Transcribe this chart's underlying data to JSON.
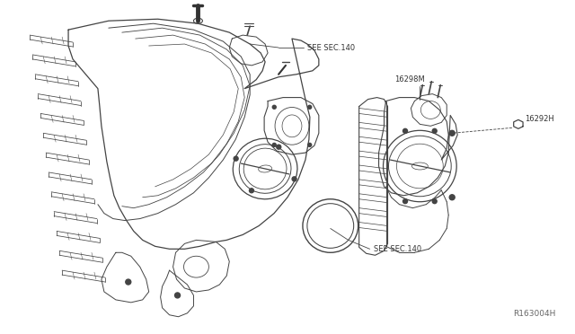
{
  "background_color": "#ffffff",
  "text_color": "#333333",
  "line_color": "#444444",
  "labels": {
    "see_sec_140_top": "SEE SEC.140",
    "see_sec_140_bottom": "SEE SEC.140",
    "part_16298M": "16298M",
    "part_16292H": "16292H",
    "diagram_code": "R163004H"
  },
  "font_size_labels": 6.0,
  "font_size_code": 6.5
}
